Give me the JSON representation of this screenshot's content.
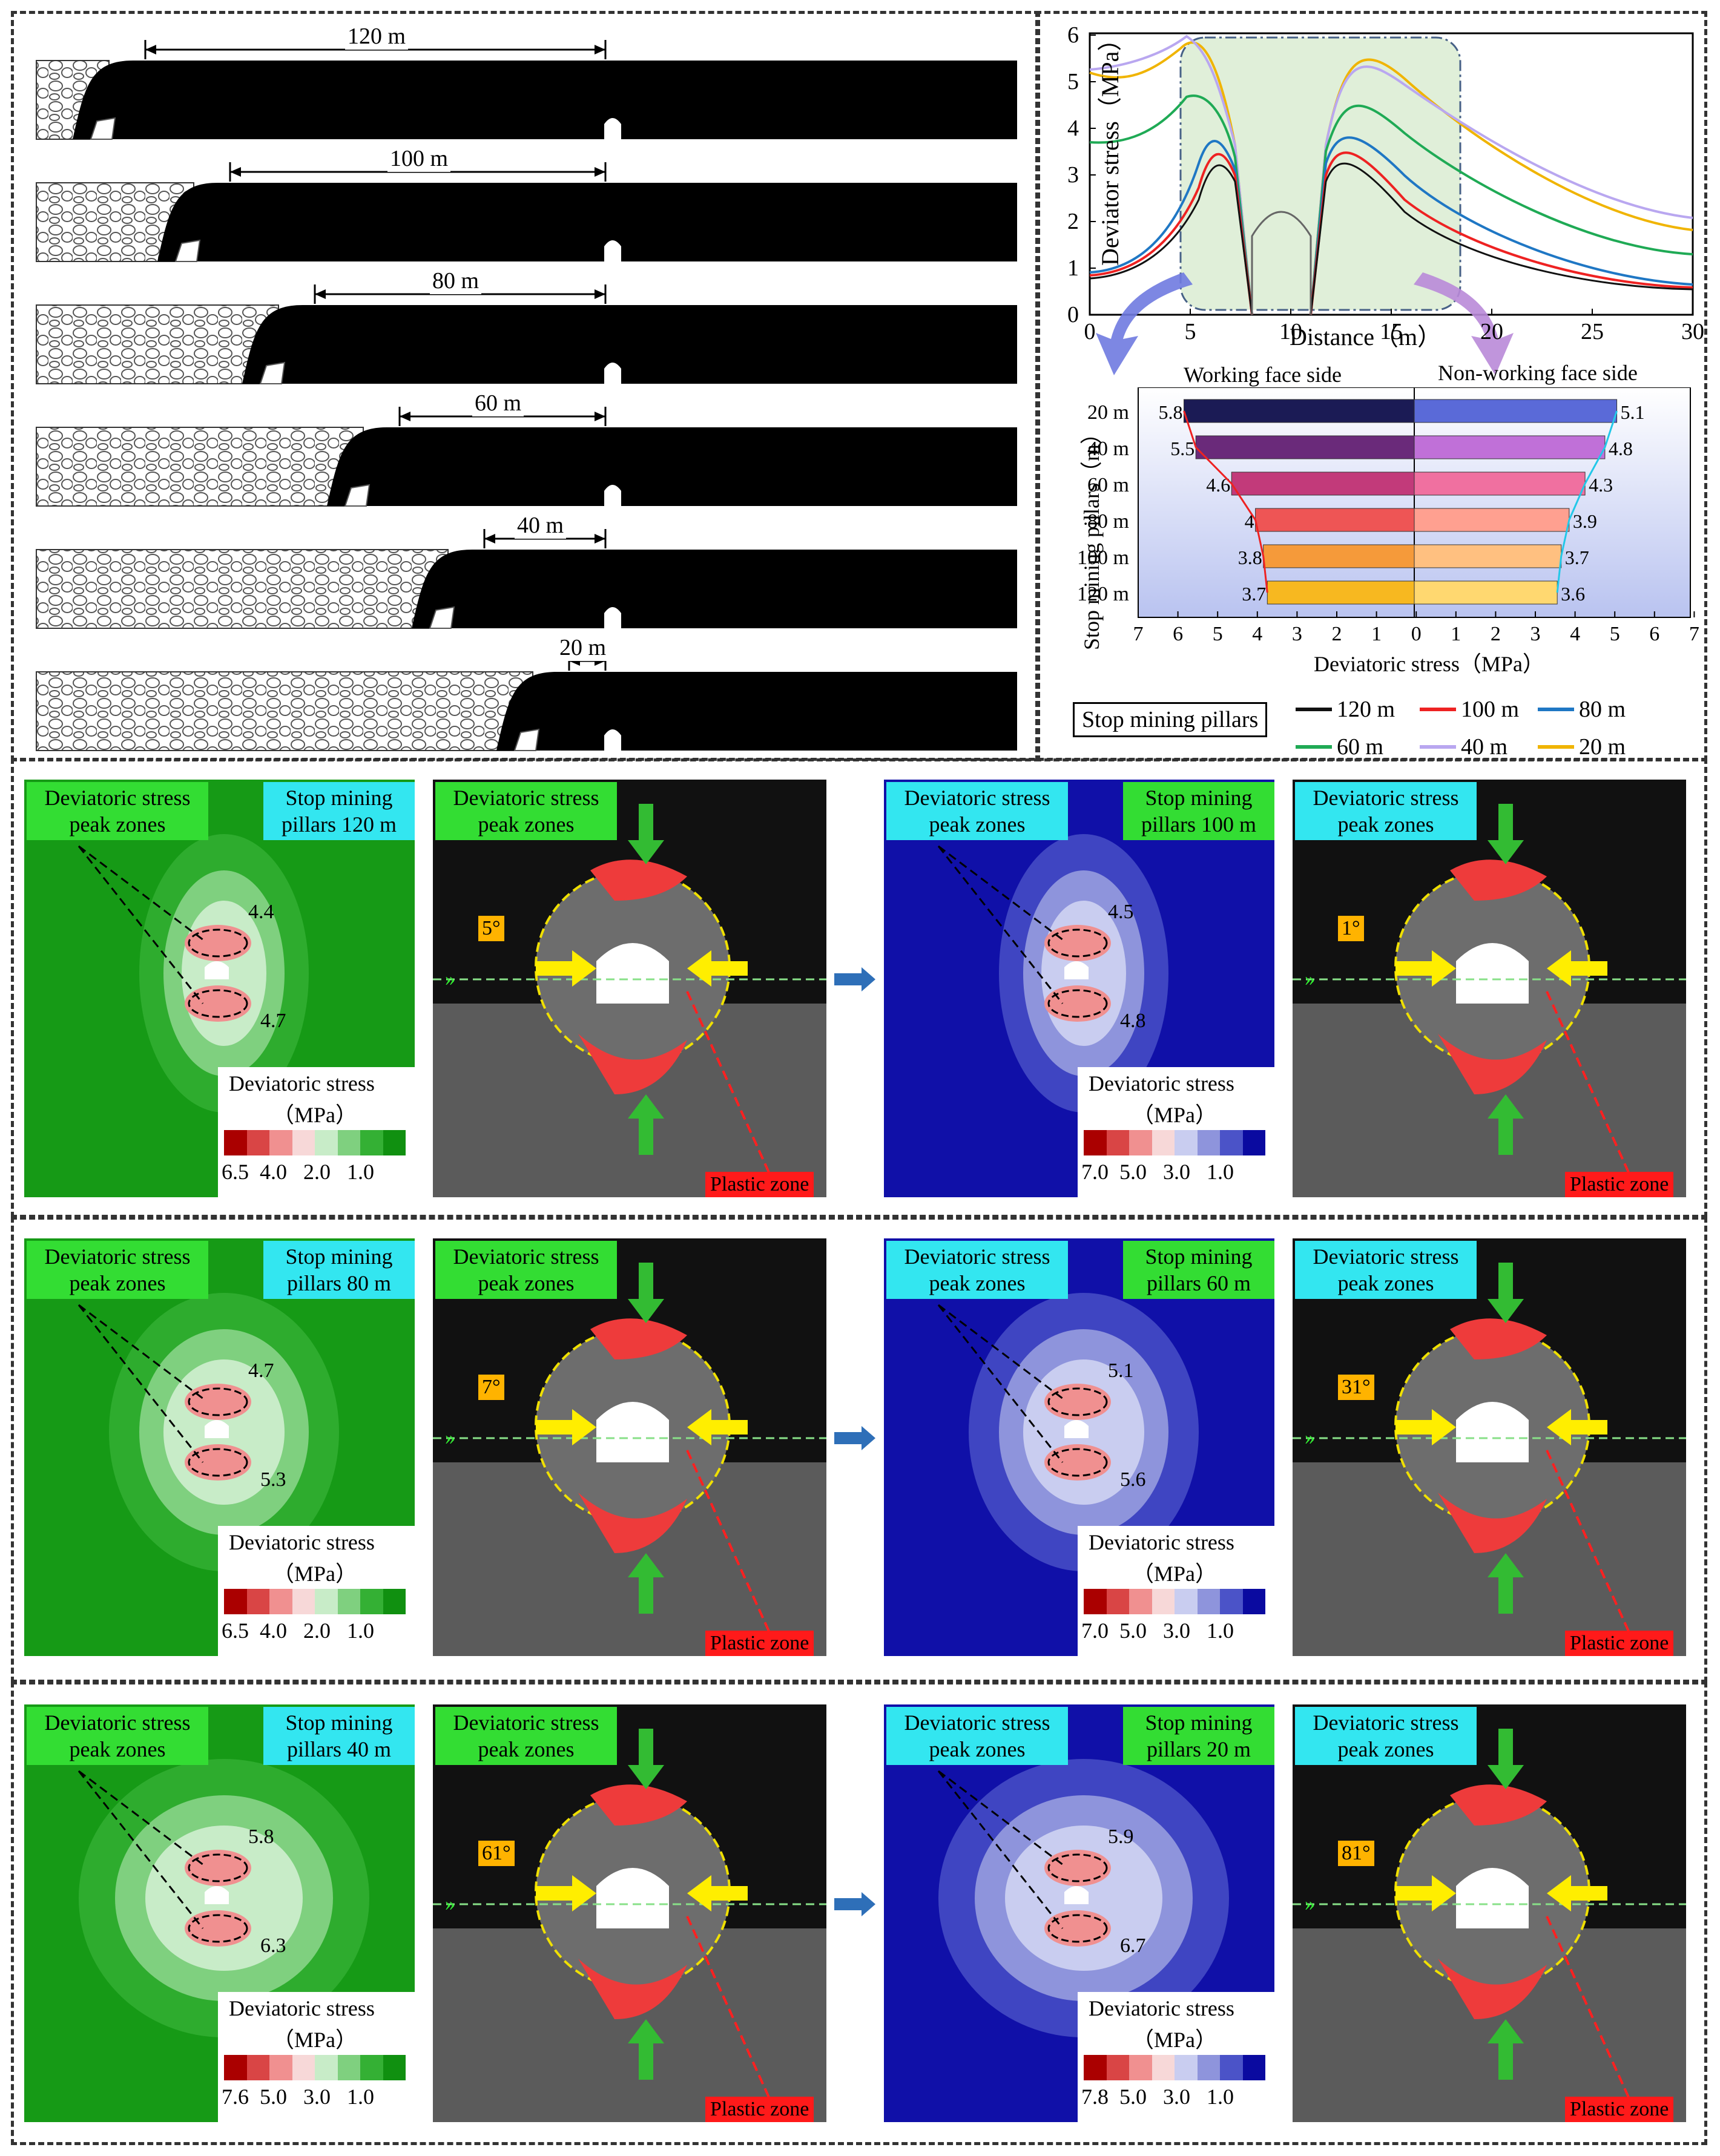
{
  "top_left": {
    "distances": [
      "120 m",
      "100 m",
      "80 m",
      "60 m",
      "40 m",
      "20 m"
    ]
  },
  "line_chart": {
    "ylabel": "Deviator stress（MPa）",
    "xlabel": "Distance（m）",
    "x_ticks": [
      "0",
      "5",
      "10",
      "15",
      "20",
      "25",
      "30"
    ],
    "y_ticks": [
      "0",
      "1",
      "2",
      "3",
      "4",
      "5",
      "6"
    ],
    "working_side_label": "Working face side",
    "nonworking_side_label": "Non-working face side"
  },
  "chart_data": {
    "type": "bar",
    "ylabel": "Stop mining pillars（m）",
    "xlabel": "Deviatoric stress（MPa）",
    "categories": [
      "20 m",
      "40 m",
      "60 m",
      "80 m",
      "100 m",
      "120 m"
    ],
    "series": [
      {
        "name": "Working face side",
        "values": [
          5.8,
          5.5,
          4.6,
          4,
          3.8,
          3.7
        ]
      },
      {
        "name": "Non-working face side",
        "values": [
          5.1,
          4.8,
          4.3,
          3.9,
          3.7,
          3.6
        ]
      }
    ],
    "x_ticks": [
      "7",
      "6",
      "5",
      "4",
      "3",
      "2",
      "1",
      "0",
      "1",
      "2",
      "3",
      "4",
      "5",
      "6",
      "7"
    ],
    "xlim": [
      -7,
      7
    ]
  },
  "legend": {
    "title": "Stop mining pillars",
    "items": [
      {
        "label": "120 m",
        "color": "#111111"
      },
      {
        "label": "100 m",
        "color": "#ee2222"
      },
      {
        "label": "80 m",
        "color": "#1f77c4"
      },
      {
        "label": "60 m",
        "color": "#1faa55"
      },
      {
        "label": "40 m",
        "color": "#b9a7f0"
      },
      {
        "label": "20 m",
        "color": "#f0b400"
      }
    ]
  },
  "common": {
    "peak_zones": "Deviatoric stress peak zones",
    "scale_title": "Deviatoric stress",
    "scale_unit": "（MPa）",
    "plastic_zone": "Plastic zone"
  },
  "cases": [
    {
      "pillar": "Stop mining pillars 120 m",
      "peaks": [
        "4.4",
        "4.7"
      ],
      "scale": "6.5  4.0   2.0   1.0",
      "angle": "5°"
    },
    {
      "pillar": "Stop mining pillars 100 m",
      "peaks": [
        "4.5",
        "4.8"
      ],
      "scale": "7.0  5.0   3.0   1.0",
      "angle": "1°"
    },
    {
      "pillar": "Stop mining pillars 80 m",
      "peaks": [
        "4.7",
        "5.3"
      ],
      "scale": "6.5  4.0   2.0   1.0",
      "angle": "7°"
    },
    {
      "pillar": "Stop mining pillars 60 m",
      "peaks": [
        "5.1",
        "5.6"
      ],
      "scale": "7.0  5.0   3.0   1.0",
      "angle": "31°"
    },
    {
      "pillar": "Stop mining pillars 40 m",
      "peaks": [
        "5.8",
        "6.3"
      ],
      "scale": "7.6  5.0   3.0   1.0",
      "angle": "61°"
    },
    {
      "pillar": "Stop mining pillars 20 m",
      "peaks": [
        "5.9",
        "6.7"
      ],
      "scale": "7.8  5.0   3.0   1.0",
      "angle": "81°"
    }
  ]
}
